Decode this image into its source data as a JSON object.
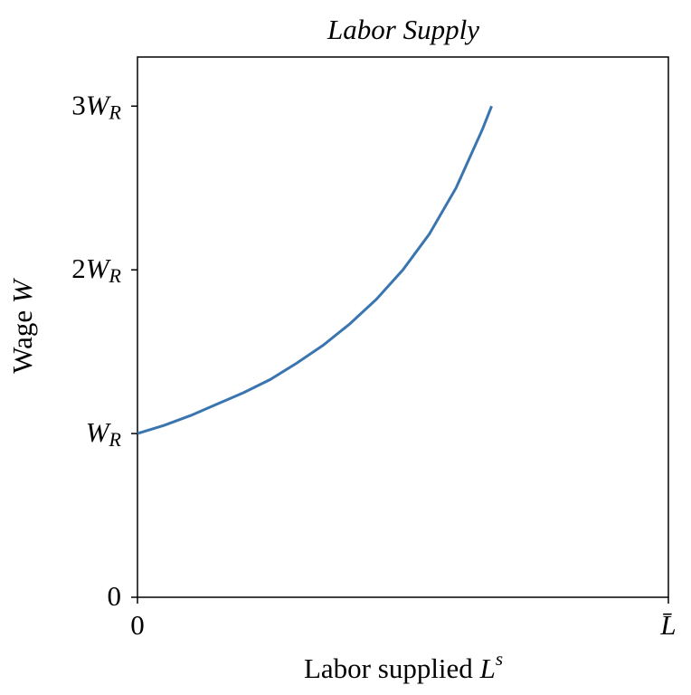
{
  "chart_data": {
    "type": "line",
    "title": "Labor Supply",
    "xlabel": "Labor supplied Ls",
    "ylabel": "Wage W",
    "x": [
      0,
      0.05,
      0.1,
      0.15,
      0.2,
      0.25,
      0.3,
      0.35,
      0.4,
      0.45,
      0.5,
      0.55,
      0.6,
      0.65,
      0.667
    ],
    "series": [
      {
        "color": "#3a75af",
        "values": [
          1,
          1.05,
          1.11,
          1.18,
          1.25,
          1.33,
          1.43,
          1.54,
          1.67,
          1.82,
          2,
          2.22,
          2.5,
          2.86,
          3
        ]
      }
    ],
    "xlim": [
      0,
      1
    ],
    "xticks": [
      0,
      {
        "value": 1,
        "label": "L̄"
      }
    ],
    "ylim": [
      0,
      3.3
    ],
    "yticks": [
      0,
      {
        "value": 1,
        "label": "WR"
      },
      {
        "value": 2,
        "label": "2WR"
      },
      {
        "value": 3,
        "label": "3WR"
      }
    ],
    "grid": false
  }
}
